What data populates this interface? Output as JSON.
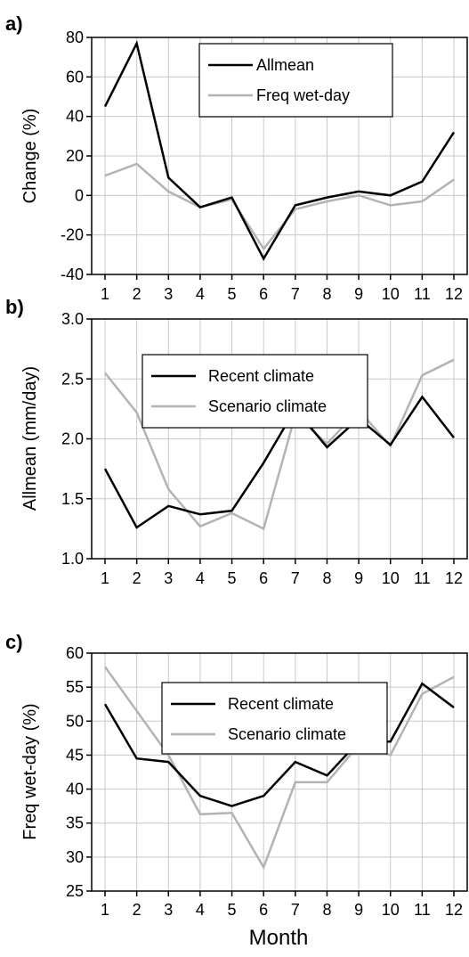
{
  "colors": {
    "black_series": "#000000",
    "gray_series": "#b3b3b3",
    "grid": "#c8c8c8",
    "axis": "#000000"
  },
  "xlabel": "Month",
  "chart_data": [
    {
      "type": "line",
      "panel": "a)",
      "ylabel": "Change (%)",
      "categories": [
        "1",
        "2",
        "3",
        "4",
        "5",
        "6",
        "7",
        "8",
        "9",
        "10",
        "11",
        "12"
      ],
      "ylim": [
        -40,
        80
      ],
      "yticks": [
        "-40",
        "-20",
        "0",
        "20",
        "40",
        "60",
        "80"
      ],
      "grid": true,
      "legend_placement": "top-right",
      "series": [
        {
          "name": "Allmean",
          "color": "black",
          "values": [
            45,
            77,
            9,
            -6,
            -1,
            -32,
            -5,
            -1,
            2,
            0,
            7,
            32
          ]
        },
        {
          "name": "Freq wet-day",
          "color": "gray",
          "values": [
            10,
            16,
            2,
            -6,
            -2,
            -27,
            -7,
            -3,
            0,
            -5,
            -3,
            8
          ]
        }
      ]
    },
    {
      "type": "line",
      "panel": "b)",
      "ylabel": "Allmean (mm/day)",
      "categories": [
        "1",
        "2",
        "3",
        "4",
        "5",
        "6",
        "7",
        "8",
        "9",
        "10",
        "11",
        "12"
      ],
      "ylim": [
        1.0,
        3.0
      ],
      "yticks": [
        "1.0",
        "1.5",
        "2.0",
        "2.5",
        "3.0"
      ],
      "grid": true,
      "legend_placement": "top-center",
      "series": [
        {
          "name": "Recent climate",
          "color": "black",
          "values": [
            1.75,
            1.26,
            1.44,
            1.37,
            1.4,
            1.8,
            2.25,
            1.93,
            2.17,
            1.95,
            2.35,
            2.01
          ]
        },
        {
          "name": "Scenario climate",
          "color": "gray",
          "values": [
            2.55,
            2.22,
            1.58,
            1.27,
            1.38,
            1.25,
            2.2,
            1.96,
            2.24,
            1.94,
            2.53,
            2.66
          ]
        }
      ]
    },
    {
      "type": "line",
      "panel": "c)",
      "ylabel": "Freq wet-day (%)",
      "categories": [
        "1",
        "2",
        "3",
        "4",
        "5",
        "6",
        "7",
        "8",
        "9",
        "10",
        "11",
        "12"
      ],
      "ylim": [
        25,
        60
      ],
      "yticks": [
        "25",
        "30",
        "35",
        "40",
        "45",
        "50",
        "55",
        "60"
      ],
      "grid": true,
      "legend_placement": "top-center",
      "series": [
        {
          "name": "Recent climate",
          "color": "black",
          "values": [
            52.5,
            44.5,
            44.0,
            39.0,
            37.5,
            39.0,
            44.0,
            42.0,
            47.0,
            47.0,
            55.5,
            52.0
          ]
        },
        {
          "name": "Scenario climate",
          "color": "gray",
          "values": [
            58.0,
            51.5,
            45.0,
            36.3,
            36.5,
            28.5,
            41.0,
            41.0,
            46.5,
            45.0,
            54.0,
            56.5
          ]
        }
      ]
    }
  ]
}
